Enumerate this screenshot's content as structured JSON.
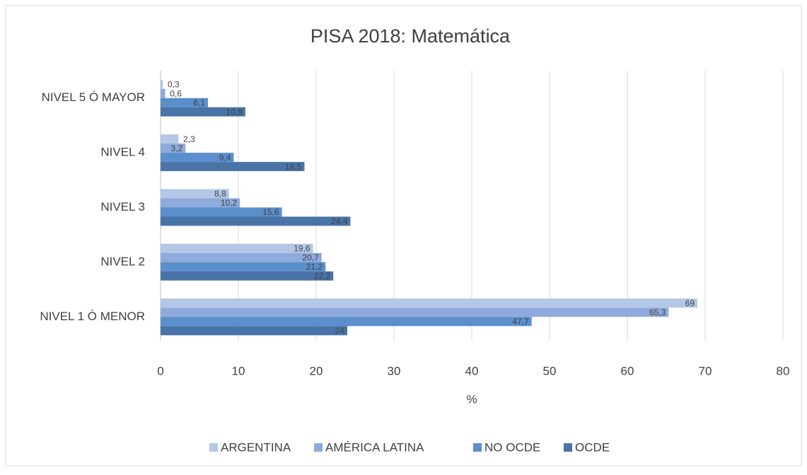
{
  "chart_data": {
    "type": "hbar",
    "title": "PISA 2018: Matemática",
    "x_label": "%",
    "categories": [
      "NIVEL 5 Ó MAYOR",
      "NIVEL 4",
      "NIVEL 3",
      "NIVEL 2",
      "NIVEL 1 Ó MENOR"
    ],
    "series": [
      {
        "name": "ARGENTINA",
        "color": "#b4c7e7",
        "values": [
          0.3,
          2.3,
          8.8,
          19.6,
          69
        ],
        "value_labels": [
          "0,3",
          "2,3",
          "8,8",
          "19,6",
          "69"
        ]
      },
      {
        "name": "AMÉRICA LATINA",
        "color": "#8faadc",
        "values": [
          0.6,
          3.2,
          10.2,
          20.7,
          65.3
        ],
        "value_labels": [
          "0,6",
          "3,2",
          "10,2",
          "20,7",
          "65,3"
        ]
      },
      {
        "name": "NO OCDE",
        "color": "#5b8fcc",
        "values": [
          6.1,
          9.4,
          15.6,
          21.2,
          47.7
        ],
        "value_labels": [
          "6,1",
          "9,4",
          "15,6",
          "21,2",
          "47,7"
        ]
      },
      {
        "name": "OCDE",
        "color": "#4a74a8",
        "values": [
          10.9,
          18.5,
          24.4,
          22.2,
          24
        ],
        "value_labels": [
          "10,9",
          "18,5",
          "24,4",
          "22,2",
          "24"
        ]
      }
    ],
    "xlim": [
      0,
      80
    ],
    "xticks": [
      0,
      10,
      20,
      30,
      40,
      50,
      60,
      70,
      80
    ],
    "grid": true,
    "legend": "bottom"
  }
}
